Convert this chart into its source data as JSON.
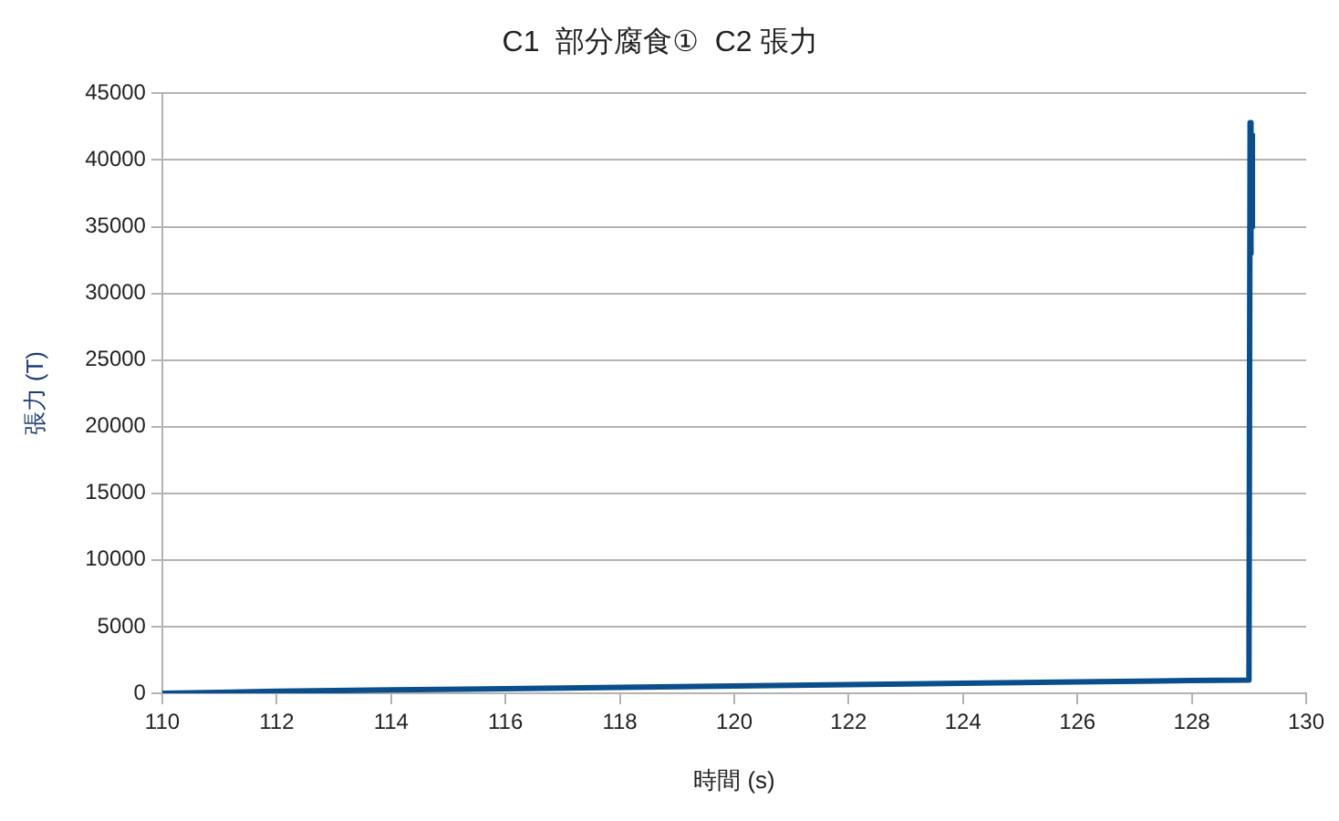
{
  "chart_data": {
    "type": "line",
    "title": "C1  部分腐食①  C2 張力",
    "xlabel": "時間 (s)",
    "ylabel": "張力 (T)",
    "series": [
      {
        "color": "#0a4f8c",
        "x": [
          110,
          112,
          114,
          116,
          118,
          120,
          122,
          124,
          126,
          128,
          129,
          129.02,
          129.03,
          129.04,
          129.05,
          129.06
        ],
        "values": [
          0,
          150,
          250,
          350,
          450,
          550,
          650,
          750,
          850,
          950,
          1000,
          42800,
          33000,
          42500,
          35000,
          42000
        ]
      }
    ],
    "xlim": [
      110,
      130
    ],
    "xticks": [
      110,
      112,
      114,
      116,
      118,
      120,
      122,
      124,
      126,
      128,
      130
    ],
    "ylim": [
      0,
      45000
    ],
    "yticks": [
      0,
      5000,
      10000,
      15000,
      20000,
      25000,
      30000,
      35000,
      40000,
      45000
    ],
    "grid": "y",
    "legend": false,
    "marker": "none",
    "line_style": "solid"
  }
}
